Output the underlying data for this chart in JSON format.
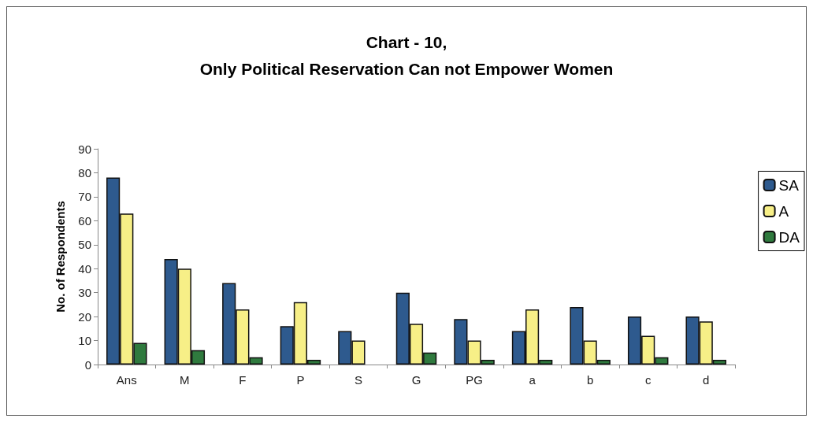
{
  "chart_data": {
    "type": "bar",
    "title": "Chart - 10,\nOnly Political Reservation Can not Empower Women",
    "ylabel": "No. of Respondents",
    "categories": [
      "Ans",
      "M",
      "F",
      "P",
      "S",
      "G",
      "PG",
      "a",
      "b",
      "c",
      "d"
    ],
    "series": [
      {
        "name": "SA",
        "color": "#2e5a8e",
        "values": [
          78,
          44,
          34,
          16,
          14,
          30,
          19,
          14,
          24,
          20,
          20
        ]
      },
      {
        "name": "A",
        "color": "#f7ef87",
        "values": [
          63,
          40,
          23,
          26,
          10,
          17,
          10,
          23,
          10,
          12,
          18
        ]
      },
      {
        "name": "DA",
        "color": "#2f7a3e",
        "values": [
          9,
          6,
          3,
          2,
          null,
          5,
          2,
          2,
          2,
          3,
          2
        ]
      }
    ],
    "ylim": [
      0,
      90
    ],
    "yticks": [
      0,
      10,
      20,
      30,
      40,
      50,
      60,
      70,
      80,
      90
    ],
    "grid": false,
    "legend": "right"
  }
}
